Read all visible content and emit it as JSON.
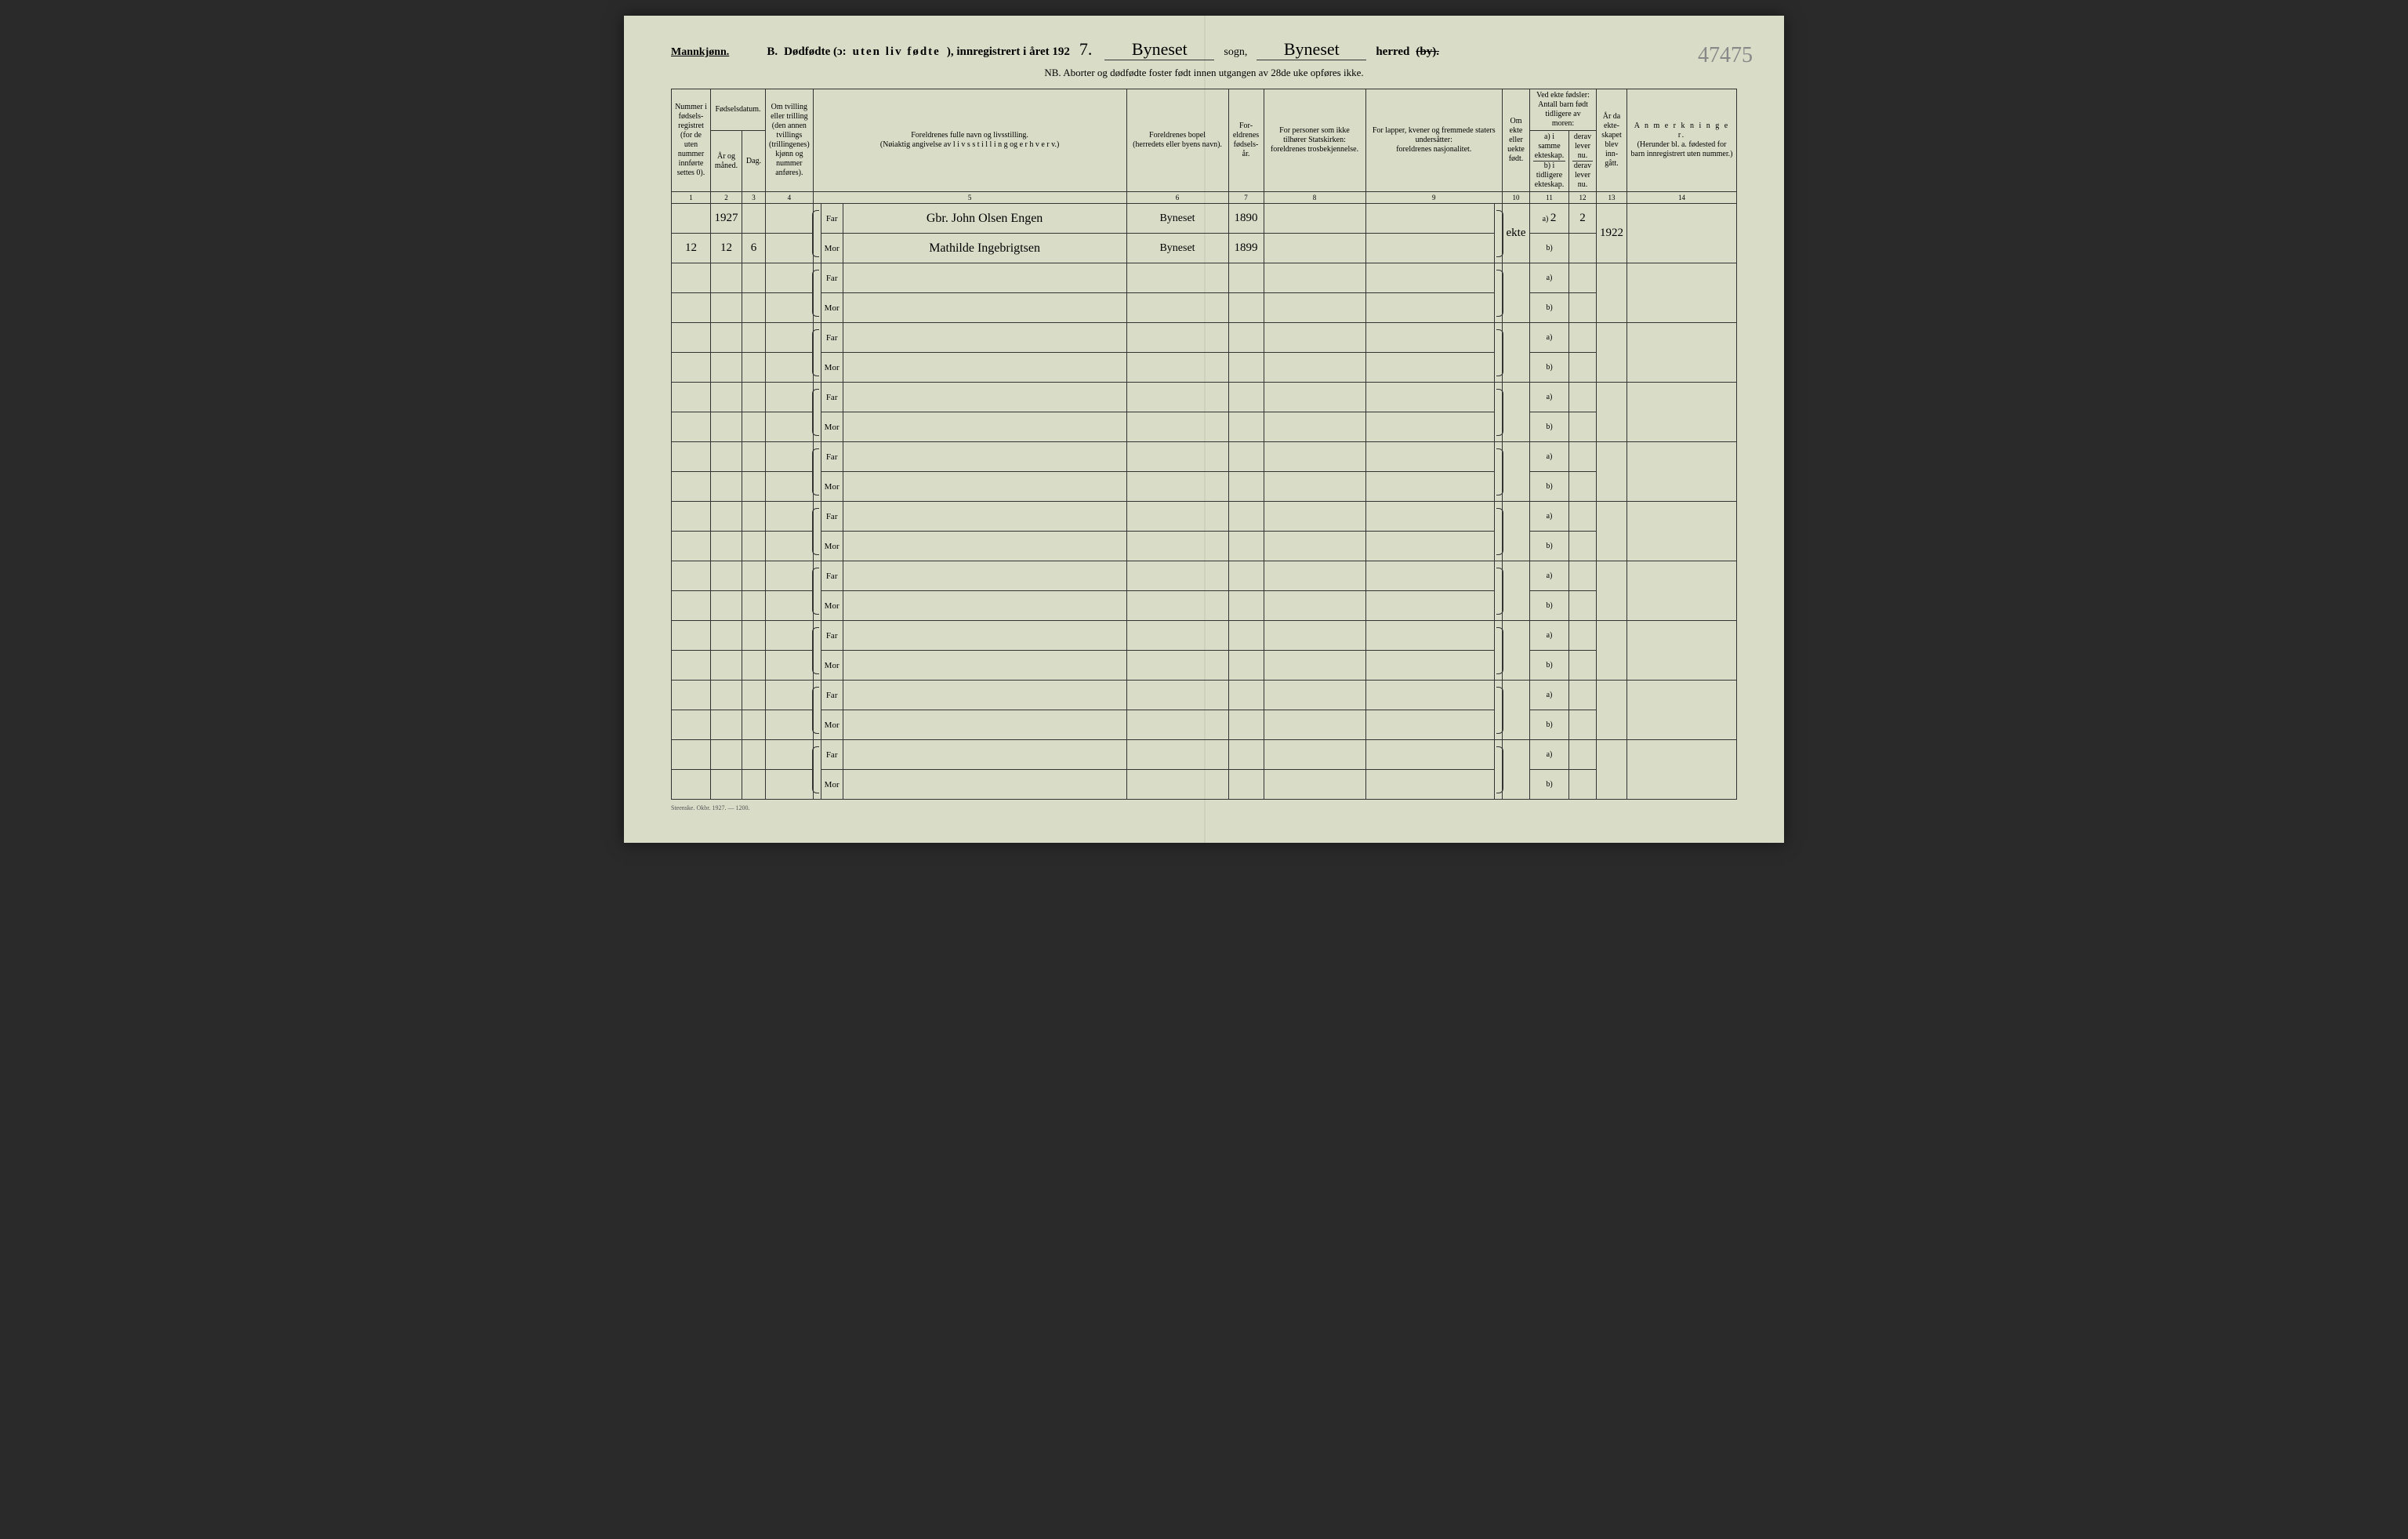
{
  "header": {
    "gender": "Mannkjønn.",
    "section_letter": "B.",
    "title_main": "Dødfødte (ɔ:",
    "title_spaced": "uten liv fødte",
    "title_after": "), innregistrert i året 192",
    "year_digit": "7.",
    "sogn_value": "Byneset",
    "sogn_label": "sogn,",
    "herred_value": "Byneset",
    "herred_label": "herred",
    "herred_struck": "(by).",
    "pencil_note": "47475",
    "nb": "NB.  Aborter og dødfødte foster født innen utgangen av 28de uke opføres ikke."
  },
  "columns": {
    "c1": "Nummer i fødsels-registret (for de uten nummer innførte settes 0).",
    "c2_top": "Fødselsdatum.",
    "c2a": "År og måned.",
    "c2b": "Dag.",
    "c4": "Om tvilling eller trilling (den annen tvillings (trillingenes) kjønn og nummer anføres).",
    "c5_top": "Foreldrenes fulle navn og livsstilling.",
    "c5_sub": "(Nøiaktig angivelse av  l i v s s t i l l i n g  og  e r h v e r v.)",
    "c6_top": "Foreldrenes bopel",
    "c6_sub": "(herredets eller byens navn).",
    "c7": "For-eldrenes fødsels-år.",
    "c8_top": "For personer som ikke tilhører Statskirken:",
    "c8_sub": "foreldrenes trosbekjennelse.",
    "c9_top": "For lapper, kvener og fremmede staters undersåtter:",
    "c9_sub": "foreldrenes nasjonalitet.",
    "c10": "Om ekte eller uekte født.",
    "c11_top": "Ved ekte fødsler: Antall barn født tidligere av moren:",
    "c11a": "a) i samme ekteskap.",
    "c11b": "b) i tidligere ekteskap.",
    "c12a": "derav lever nu.",
    "c12b": "derav lever nu.",
    "c13": "År da ekte-skapet blev inn-gått.",
    "c14_top": "A n m e r k n i n g e r.",
    "c14_sub": "(Herunder bl. a. fødested for barn innregistrert uten nummer.)",
    "far": "Far",
    "mor": "Mor",
    "a_label": "a)",
    "b_label": "b)"
  },
  "colnums": {
    "n1": "1",
    "n2": "2",
    "n3": "3",
    "n4": "4",
    "n5": "5",
    "n6": "6",
    "n7": "7",
    "n8": "8",
    "n9": "9",
    "n10": "10",
    "n11": "11",
    "n12": "12",
    "n13": "13",
    "n14": "14"
  },
  "entry": {
    "year": "1927",
    "number": "12",
    "month": "12",
    "day": "6",
    "far_name": "Gbr. John Olsen Engen",
    "mor_name": "Mathilde Ingebrigtsen",
    "far_residence": "Byneset",
    "mor_residence": "Byneset",
    "far_birth": "1890",
    "mor_birth": "1899",
    "ekte": "ekte",
    "count_a": "2",
    "lever_a": "2",
    "marriage_year": "1922"
  },
  "footer": {
    "print": "Steenske. Okbr. 1927. — 1200."
  }
}
